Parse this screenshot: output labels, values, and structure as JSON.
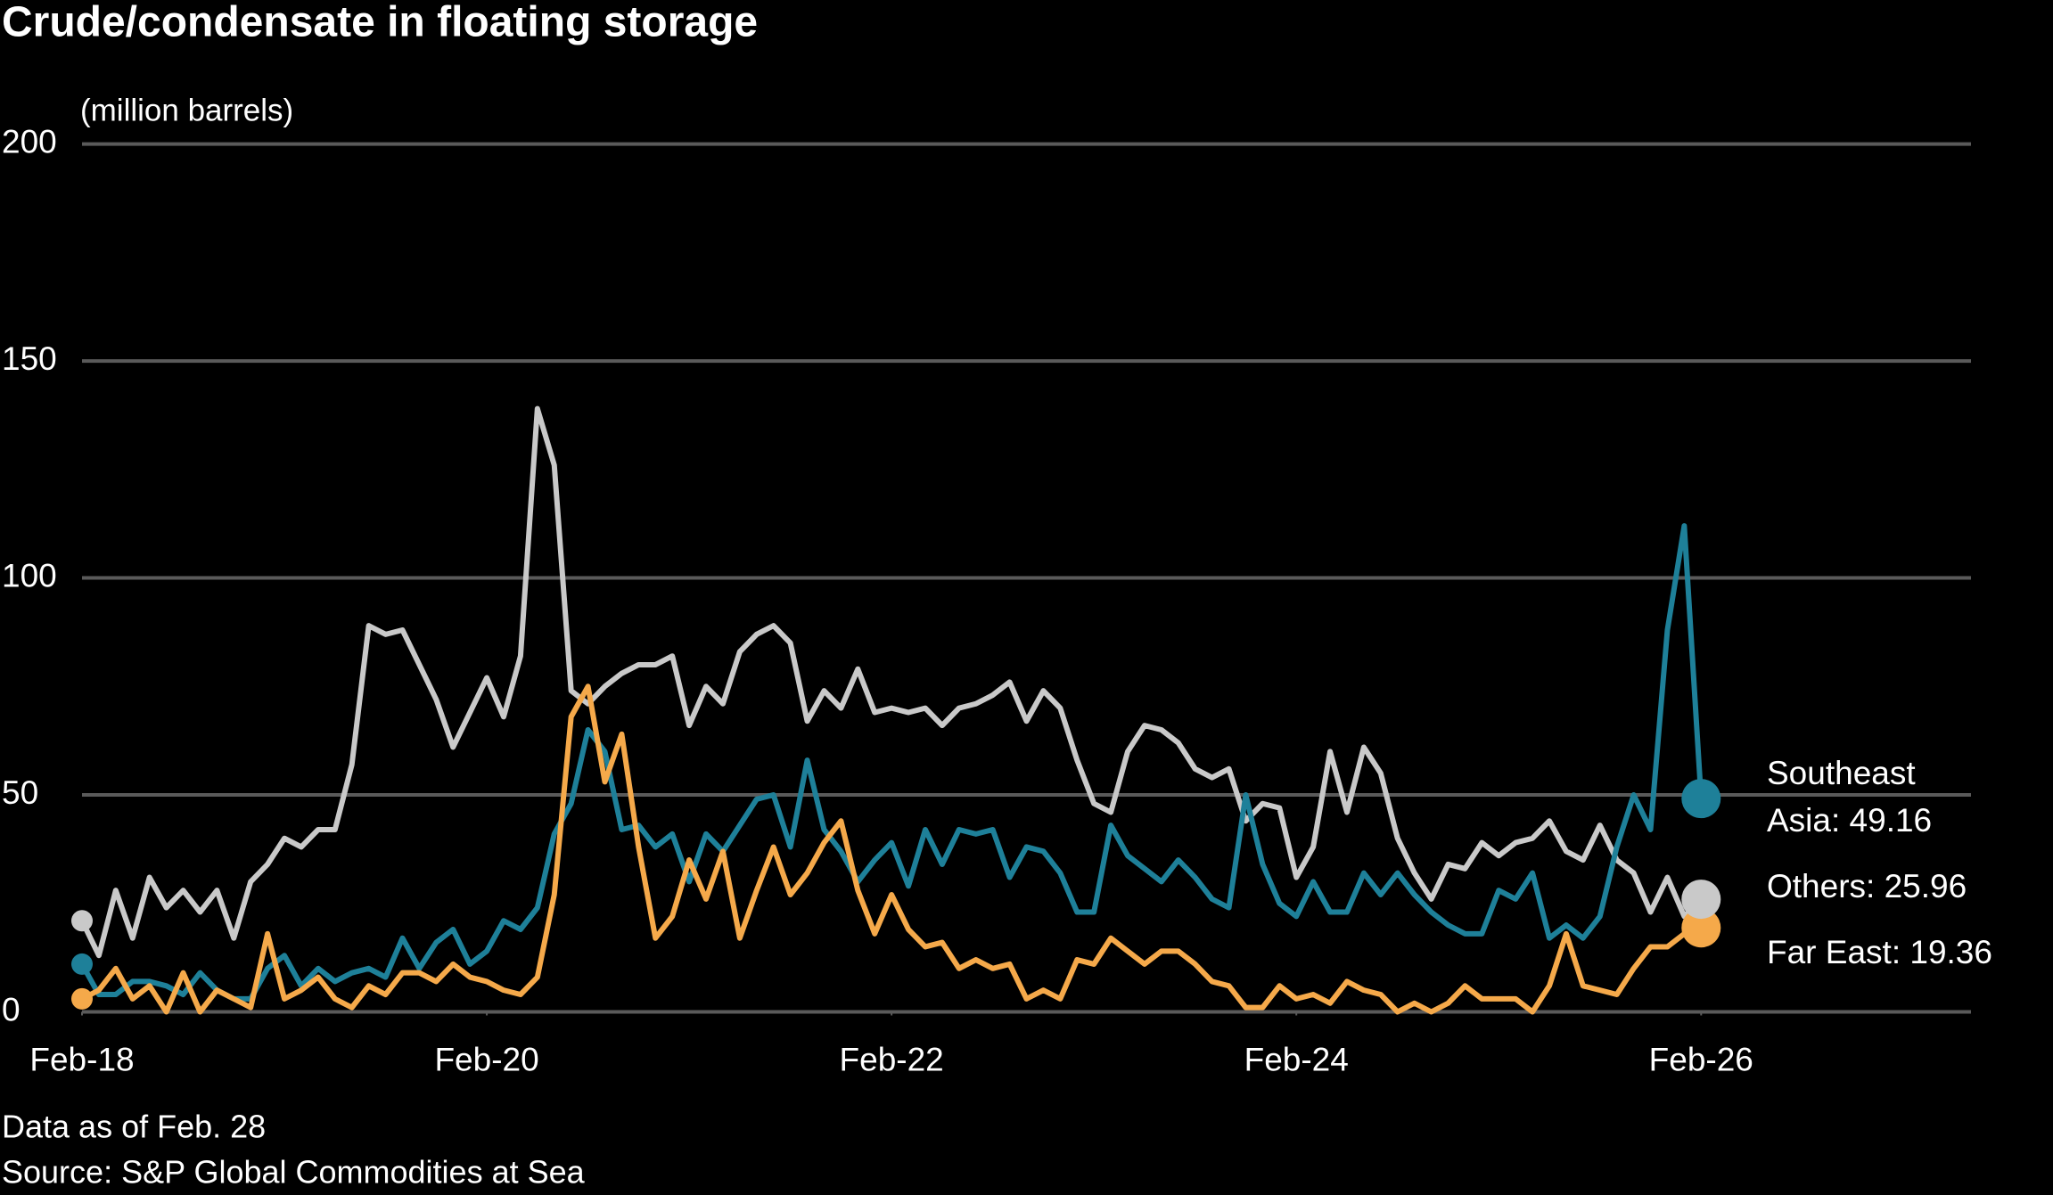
{
  "chart_data": {
    "type": "line",
    "title": "Crude/condensate in floating storage",
    "subtitle": "(million barrels)",
    "notes": [
      "Data as of Feb. 28",
      "Source: S&P Global Commodities at Sea"
    ],
    "x": [
      "2018-02",
      "2018-03",
      "2018-04",
      "2018-05",
      "2018-06",
      "2018-07",
      "2018-08",
      "2018-09",
      "2018-10",
      "2018-11",
      "2018-12",
      "2019-01",
      "2019-02",
      "2019-03",
      "2019-04",
      "2019-05",
      "2019-06",
      "2019-07",
      "2019-08",
      "2019-09",
      "2019-10",
      "2019-11",
      "2019-12",
      "2020-01",
      "2020-02",
      "2020-03",
      "2020-04",
      "2020-05",
      "2020-06",
      "2020-07",
      "2020-08",
      "2020-09",
      "2020-10",
      "2020-11",
      "2020-12",
      "2021-01",
      "2021-02",
      "2021-03",
      "2021-04",
      "2021-05",
      "2021-06",
      "2021-07",
      "2021-08",
      "2021-09",
      "2021-10",
      "2021-11",
      "2021-12",
      "2022-01",
      "2022-02",
      "2022-03",
      "2022-04",
      "2022-05",
      "2022-06",
      "2022-07",
      "2022-08",
      "2022-09",
      "2022-10",
      "2022-11",
      "2022-12",
      "2023-01",
      "2023-02",
      "2023-03",
      "2023-04",
      "2023-05",
      "2023-06",
      "2023-07",
      "2023-08",
      "2023-09",
      "2023-10",
      "2023-11",
      "2023-12",
      "2024-01",
      "2024-02",
      "2024-03",
      "2024-04",
      "2024-05",
      "2024-06",
      "2024-07",
      "2024-08",
      "2024-09",
      "2024-10",
      "2024-11",
      "2024-12",
      "2025-01",
      "2025-02",
      "2025-03",
      "2025-04",
      "2025-05",
      "2025-06",
      "2025-07",
      "2025-08",
      "2025-09",
      "2025-10",
      "2025-11",
      "2025-12",
      "2026-01",
      "2026-02"
    ],
    "series": [
      {
        "name": "Southeast Asia",
        "label": "Southeast Asia: 49.16",
        "color": "#1e8099",
        "values": [
          11,
          4,
          4,
          7,
          7,
          6,
          4,
          9,
          5,
          3,
          3,
          10,
          13,
          6,
          10,
          7,
          9,
          10,
          8,
          17,
          10,
          16,
          19,
          11,
          14,
          21,
          19,
          24,
          41,
          48,
          65,
          60,
          42,
          43,
          38,
          41,
          30,
          41,
          37,
          43,
          49,
          50,
          38,
          58,
          42,
          37,
          30,
          35,
          39,
          29,
          42,
          34,
          42,
          41,
          42,
          31,
          38,
          37,
          32,
          23,
          23,
          43,
          36,
          33,
          30,
          35,
          31,
          26,
          24,
          50,
          34,
          25,
          22,
          30,
          23,
          23,
          32,
          27,
          32,
          27,
          23,
          20,
          18,
          18,
          28,
          26,
          32,
          17,
          20,
          17,
          22,
          38,
          50,
          42,
          88,
          112,
          49.16
        ]
      },
      {
        "name": "Others",
        "label": "Others: 25.96",
        "color": "#c9c9c9",
        "values": [
          21,
          13,
          28,
          17,
          31,
          24,
          28,
          23,
          28,
          17,
          30,
          34,
          40,
          38,
          42,
          42,
          57,
          89,
          87,
          88,
          80,
          72,
          61,
          69,
          77,
          68,
          82,
          139,
          126,
          74,
          71,
          75,
          78,
          80,
          80,
          82,
          66,
          75,
          71,
          83,
          87,
          89,
          85,
          67,
          74,
          70,
          79,
          69,
          70,
          69,
          70,
          66,
          70,
          71,
          73,
          76,
          67,
          74,
          70,
          58,
          48,
          46,
          60,
          66,
          65,
          62,
          56,
          54,
          56,
          44,
          48,
          47,
          31,
          38,
          60,
          46,
          61,
          55,
          40,
          32,
          26,
          34,
          33,
          39,
          36,
          39,
          40,
          44,
          37,
          35,
          43,
          35,
          32,
          23,
          31,
          22,
          25.96
        ]
      },
      {
        "name": "Far East",
        "label": "Far East: 19.36",
        "color": "#f5a94a",
        "values": [
          3,
          5,
          10,
          3,
          6,
          0,
          9,
          0,
          5,
          3,
          1,
          18,
          3,
          5,
          8,
          3,
          1,
          6,
          4,
          9,
          9,
          7,
          11,
          8,
          7,
          5,
          4,
          8,
          27,
          68,
          75,
          53,
          64,
          38,
          17,
          22,
          35,
          26,
          37,
          17,
          28,
          38,
          27,
          32,
          39,
          44,
          28,
          18,
          27,
          19,
          15,
          16,
          10,
          12,
          10,
          11,
          3,
          5,
          3,
          12,
          11,
          17,
          14,
          11,
          14,
          14,
          11,
          7,
          6,
          1,
          1,
          6,
          3,
          4,
          2,
          7,
          5,
          4,
          0,
          2,
          0,
          2,
          6,
          3,
          3,
          3,
          0,
          6,
          18,
          6,
          5,
          4,
          10,
          15,
          15,
          18,
          19.36
        ]
      }
    ],
    "xlim": [
      "2018-02",
      "2027-06"
    ],
    "xticks": [
      {
        "value": "2018-02",
        "label": "Feb-18"
      },
      {
        "value": "2020-02",
        "label": "Feb-20"
      },
      {
        "value": "2022-02",
        "label": "Feb-22"
      },
      {
        "value": "2024-02",
        "label": "Feb-24"
      },
      {
        "value": "2026-02",
        "label": "Feb-26"
      }
    ],
    "ylim": [
      0,
      200
    ],
    "yticks": [
      0,
      50,
      100,
      150,
      200
    ],
    "grid": true
  }
}
